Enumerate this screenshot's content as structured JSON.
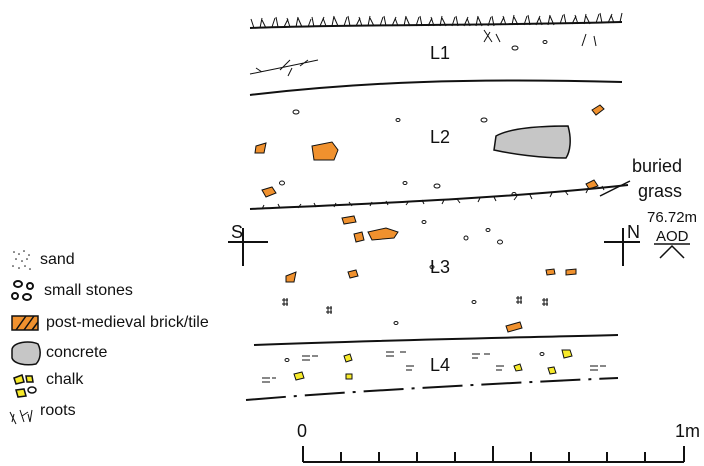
{
  "layers": [
    {
      "id": "L1",
      "label": "L1"
    },
    {
      "id": "L2",
      "label": "L2"
    },
    {
      "id": "L3",
      "label": "L3"
    },
    {
      "id": "L4",
      "label": "L4"
    }
  ],
  "annotations": {
    "buried_grass": [
      "buried",
      "grass"
    ],
    "south": "S",
    "north": "N",
    "level": "76.72m",
    "datum": "AOD"
  },
  "legend": [
    {
      "symbol": "sand-icon",
      "label": "sand"
    },
    {
      "symbol": "small-stones-icon",
      "label": "small stones"
    },
    {
      "symbol": "brick-icon",
      "label": "post-medieval brick/tile"
    },
    {
      "symbol": "concrete-icon",
      "label": "concrete"
    },
    {
      "symbol": "chalk-icon",
      "label": "chalk"
    },
    {
      "symbol": "roots-icon",
      "label": "roots"
    }
  ],
  "scale": {
    "start": "0",
    "end": "1m",
    "divisions": 10
  },
  "colors": {
    "brick": "#f0912e",
    "concrete": "#c6c6c6",
    "chalk": "#f7ea2a",
    "line": "#111111"
  }
}
